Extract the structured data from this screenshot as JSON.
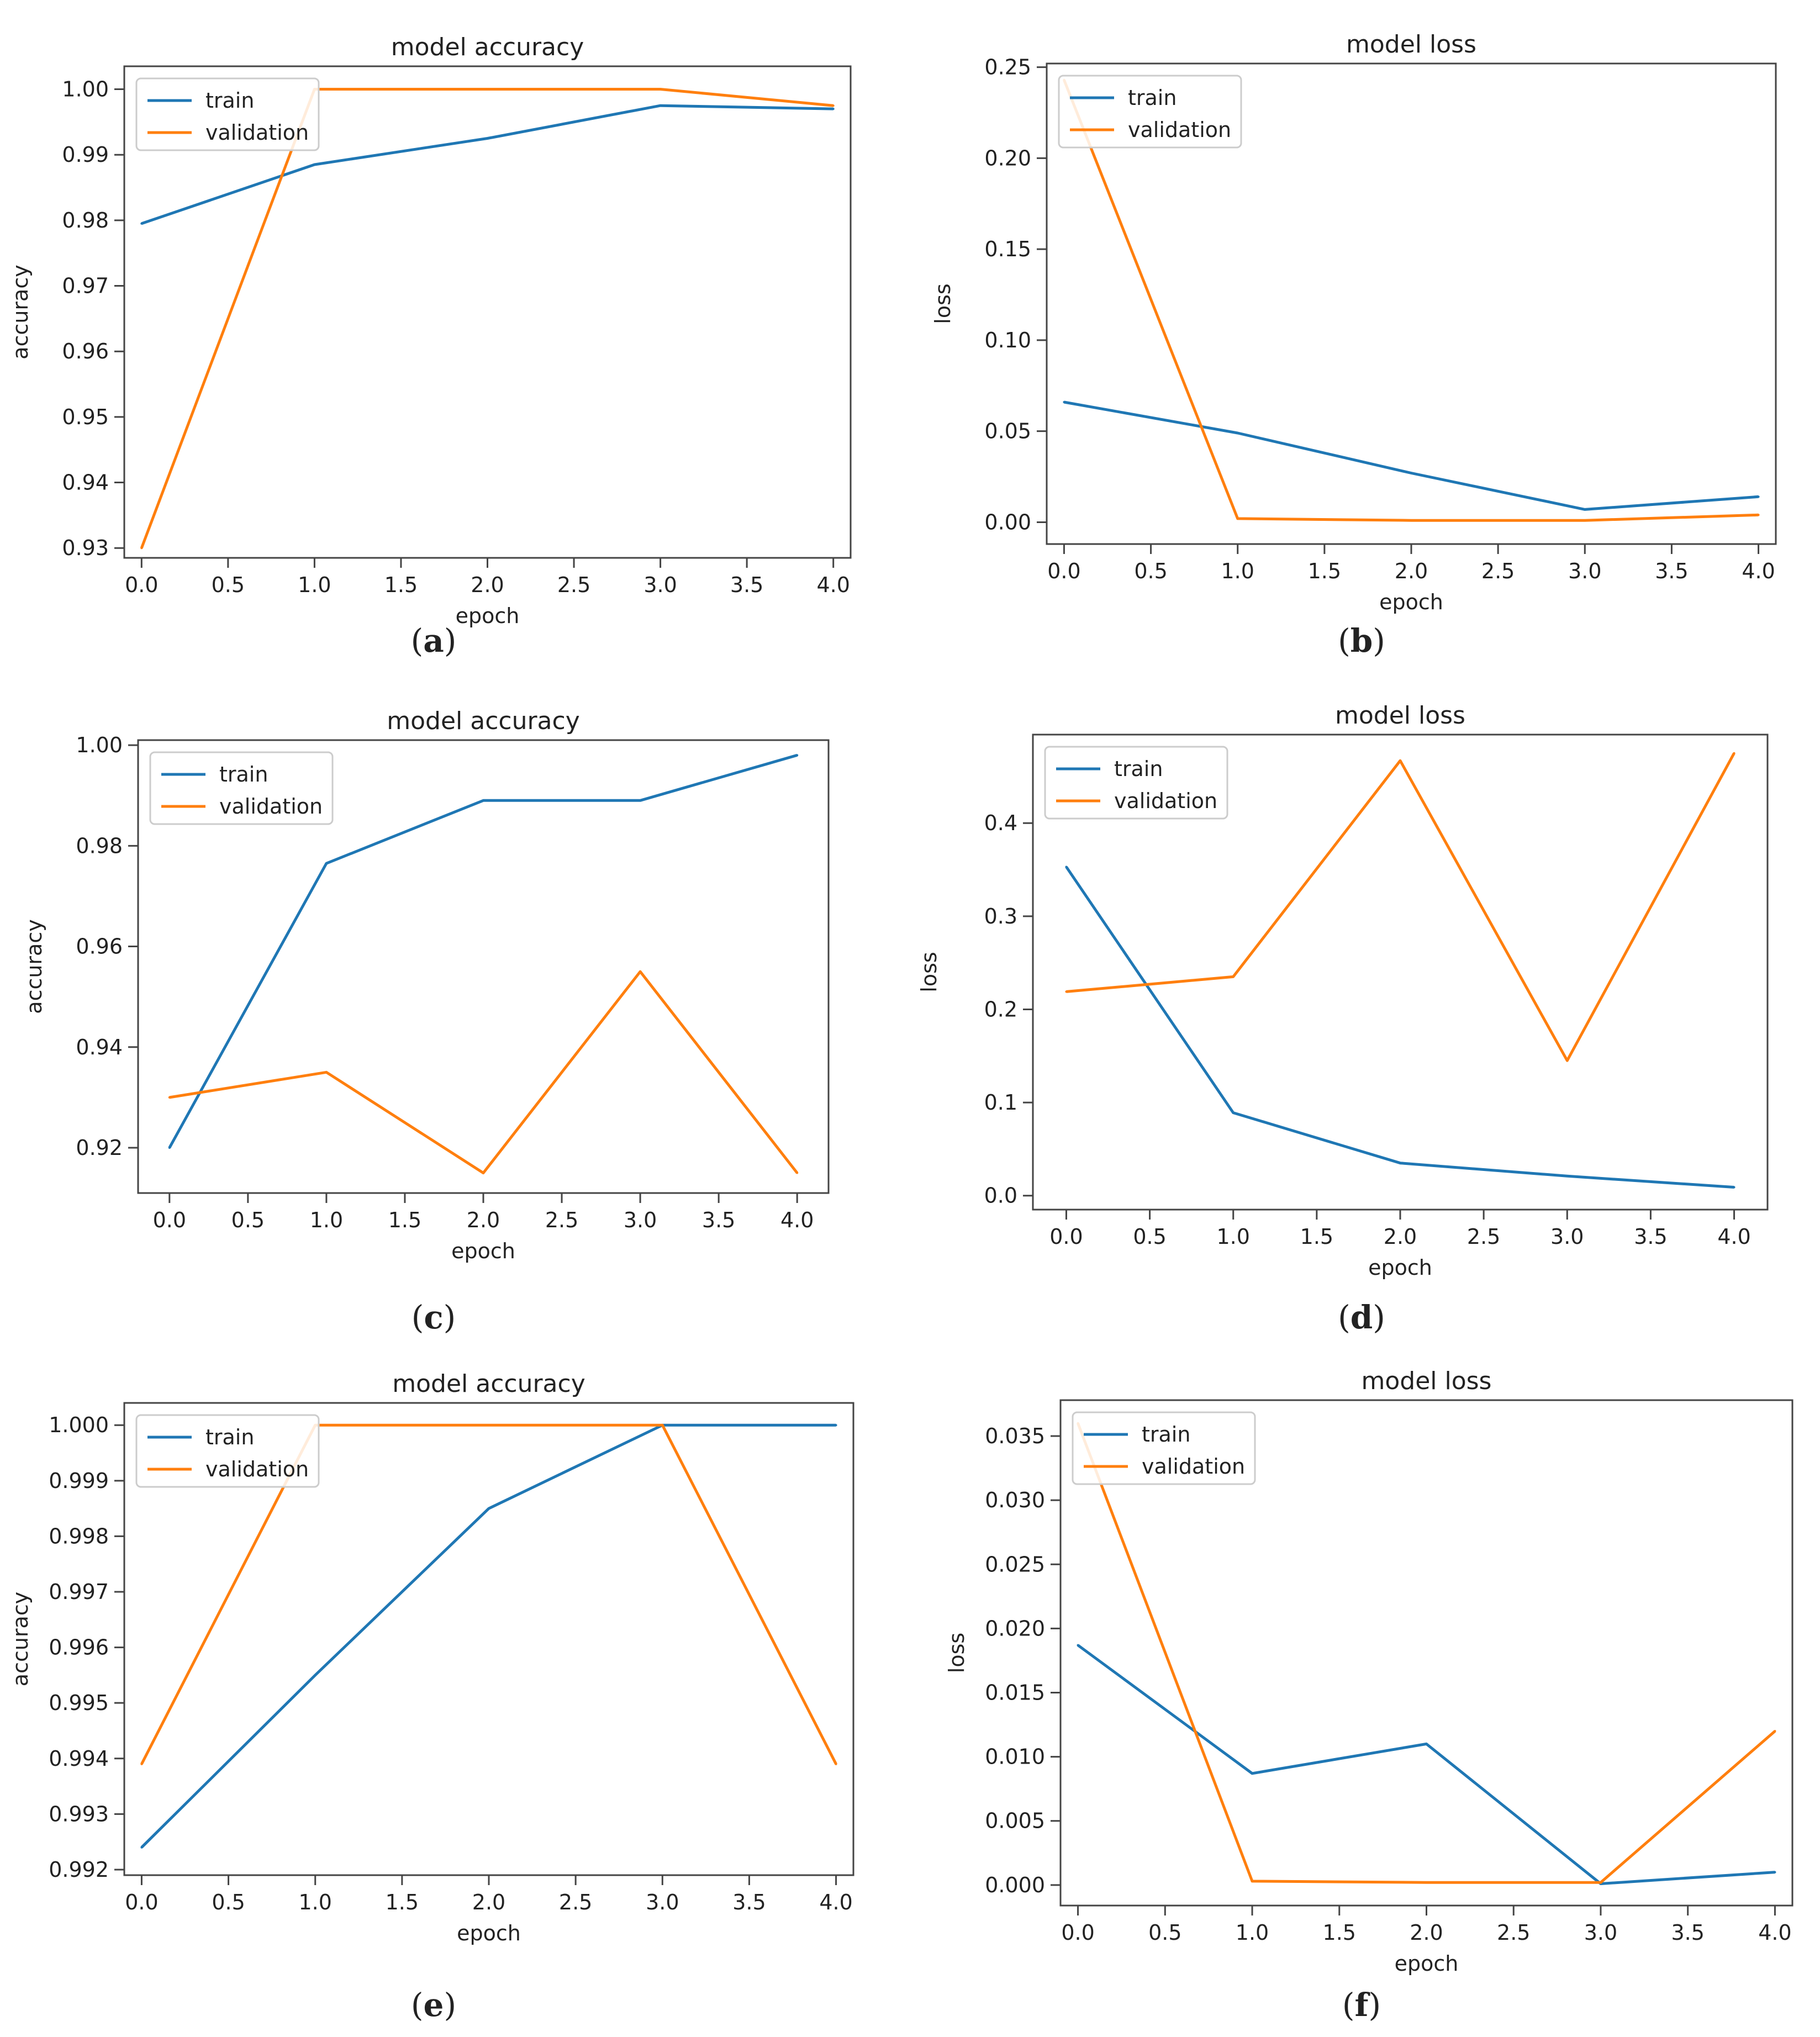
{
  "colors": {
    "train": "#1f77b4",
    "validation": "#ff7f0e",
    "axis": "#444444",
    "text": "#222222"
  },
  "chart_data": [
    {
      "panel": "(a)",
      "type": "line",
      "title": "model accuracy",
      "xlabel": "epoch",
      "ylabel": "accuracy",
      "xlim": [
        -0.1,
        4.1
      ],
      "ylim": [
        0.9285,
        1.0035
      ],
      "xticks": [
        0,
        0.5,
        1,
        1.5,
        2,
        2.5,
        3,
        3.5,
        4
      ],
      "xtick_labels": [
        "0.0",
        "0.5",
        "1.0",
        "1.5",
        "2.0",
        "2.5",
        "3.0",
        "3.5",
        "4.0"
      ],
      "yticks": [
        0.93,
        0.94,
        0.95,
        0.96,
        0.97,
        0.98,
        0.99,
        1.0
      ],
      "ytick_labels": [
        "0.93",
        "0.94",
        "0.95",
        "0.96",
        "0.97",
        "0.98",
        "0.99",
        "1.00"
      ],
      "legend": "upper-left",
      "x": [
        0,
        1,
        2,
        3,
        4
      ],
      "series": [
        {
          "name": "train",
          "values": [
            0.9795,
            0.9885,
            0.9925,
            0.9975,
            0.997
          ]
        },
        {
          "name": "validation",
          "values": [
            0.93,
            1.0,
            1.0,
            1.0,
            0.9975
          ]
        }
      ]
    },
    {
      "panel": "(b)",
      "type": "line",
      "title": "model loss",
      "xlabel": "epoch",
      "ylabel": "loss",
      "xlim": [
        -0.1,
        4.1
      ],
      "ylim": [
        -0.012,
        0.252
      ],
      "xticks": [
        0,
        0.5,
        1,
        1.5,
        2,
        2.5,
        3,
        3.5,
        4
      ],
      "xtick_labels": [
        "0.0",
        "0.5",
        "1.0",
        "1.5",
        "2.0",
        "2.5",
        "3.0",
        "3.5",
        "4.0"
      ],
      "yticks": [
        0.0,
        0.05,
        0.1,
        0.15,
        0.2,
        0.25
      ],
      "ytick_labels": [
        "0.00",
        "0.05",
        "0.10",
        "0.15",
        "0.20",
        "0.25"
      ],
      "legend": "upper-left",
      "x": [
        0,
        1,
        2,
        3,
        4
      ],
      "series": [
        {
          "name": "train",
          "values": [
            0.066,
            0.049,
            0.027,
            0.007,
            0.014
          ]
        },
        {
          "name": "validation",
          "values": [
            0.243,
            0.002,
            0.001,
            0.001,
            0.004
          ]
        }
      ]
    },
    {
      "panel": "(c)",
      "type": "line",
      "title": "model accuracy",
      "xlabel": "epoch",
      "ylabel": "accuracy",
      "xlim": [
        -0.2,
        4.2
      ],
      "ylim": [
        0.911,
        1.001
      ],
      "xticks": [
        0,
        0.5,
        1,
        1.5,
        2,
        2.5,
        3,
        3.5,
        4
      ],
      "xtick_labels": [
        "0.0",
        "0.5",
        "1.0",
        "1.5",
        "2.0",
        "2.5",
        "3.0",
        "3.5",
        "4.0"
      ],
      "yticks": [
        0.92,
        0.94,
        0.96,
        0.98,
        1.0
      ],
      "ytick_labels": [
        "0.92",
        "0.94",
        "0.96",
        "0.98",
        "1.00"
      ],
      "legend": "upper-left",
      "x": [
        0,
        1,
        2,
        3,
        4
      ],
      "series": [
        {
          "name": "train",
          "values": [
            0.92,
            0.9765,
            0.989,
            0.989,
            0.998
          ]
        },
        {
          "name": "validation",
          "values": [
            0.93,
            0.935,
            0.915,
            0.955,
            0.915
          ]
        }
      ]
    },
    {
      "panel": "(d)",
      "type": "line",
      "title": "model loss",
      "xlabel": "epoch",
      "ylabel": "loss",
      "xlim": [
        -0.2,
        4.2
      ],
      "ylim": [
        -0.015,
        0.495
      ],
      "xticks": [
        0,
        0.5,
        1,
        1.5,
        2,
        2.5,
        3,
        3.5,
        4
      ],
      "xtick_labels": [
        "0.0",
        "0.5",
        "1.0",
        "1.5",
        "2.0",
        "2.5",
        "3.0",
        "3.5",
        "4.0"
      ],
      "yticks": [
        0.0,
        0.1,
        0.2,
        0.3,
        0.4
      ],
      "ytick_labels": [
        "0.0",
        "0.1",
        "0.2",
        "0.3",
        "0.4"
      ],
      "legend": "upper-left",
      "x": [
        0,
        1,
        2,
        3,
        4
      ],
      "series": [
        {
          "name": "train",
          "values": [
            0.353,
            0.089,
            0.035,
            0.021,
            0.009
          ]
        },
        {
          "name": "validation",
          "values": [
            0.219,
            0.235,
            0.467,
            0.145,
            0.475
          ]
        }
      ]
    },
    {
      "panel": "(e)",
      "type": "line",
      "title": "model accuracy",
      "xlabel": "epoch",
      "ylabel": "accuracy",
      "xlim": [
        -0.1,
        4.1
      ],
      "ylim": [
        0.9919,
        1.0004
      ],
      "xticks": [
        0,
        0.5,
        1,
        1.5,
        2,
        2.5,
        3,
        3.5,
        4
      ],
      "xtick_labels": [
        "0.0",
        "0.5",
        "1.0",
        "1.5",
        "2.0",
        "2.5",
        "3.0",
        "3.5",
        "4.0"
      ],
      "yticks": [
        0.992,
        0.993,
        0.994,
        0.995,
        0.996,
        0.997,
        0.998,
        0.999,
        1.0
      ],
      "ytick_labels": [
        "0.992",
        "0.993",
        "0.994",
        "0.995",
        "0.996",
        "0.997",
        "0.998",
        "0.999",
        "1.000"
      ],
      "legend": "upper-left",
      "x": [
        0,
        1,
        2,
        3,
        4
      ],
      "series": [
        {
          "name": "train",
          "values": [
            0.9924,
            0.9955,
            0.9985,
            1.0,
            1.0
          ]
        },
        {
          "name": "validation",
          "values": [
            0.9939,
            1.0,
            1.0,
            1.0,
            0.9939
          ]
        }
      ]
    },
    {
      "panel": "(f)",
      "type": "line",
      "title": "model loss",
      "xlabel": "epoch",
      "ylabel": "loss",
      "xlim": [
        -0.1,
        4.1
      ],
      "ylim": [
        -0.0016,
        0.0378
      ],
      "xticks": [
        0,
        0.5,
        1,
        1.5,
        2,
        2.5,
        3,
        3.5,
        4
      ],
      "xtick_labels": [
        "0.0",
        "0.5",
        "1.0",
        "1.5",
        "2.0",
        "2.5",
        "3.0",
        "3.5",
        "4.0"
      ],
      "yticks": [
        0.0,
        0.005,
        0.01,
        0.015,
        0.02,
        0.025,
        0.03,
        0.035
      ],
      "ytick_labels": [
        "0.000",
        "0.005",
        "0.010",
        "0.015",
        "0.020",
        "0.025",
        "0.030",
        "0.035"
      ],
      "legend": "upper-left",
      "x": [
        0,
        1,
        2,
        3,
        4
      ],
      "series": [
        {
          "name": "train",
          "values": [
            0.0187,
            0.0087,
            0.011,
            0.0001,
            0.001
          ]
        },
        {
          "name": "validation",
          "values": [
            0.036,
            0.0003,
            0.0002,
            0.0002,
            0.012
          ]
        }
      ]
    }
  ]
}
